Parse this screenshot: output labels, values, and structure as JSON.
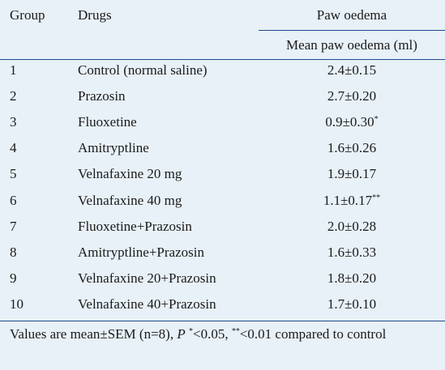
{
  "header": {
    "group": "Group",
    "drugs": "Drugs",
    "paw_oedema": "Paw oedema",
    "mean_paw_oedema": "Mean paw oedema (ml)"
  },
  "rows": [
    {
      "group": "1",
      "drug": "Control (normal saline)",
      "value": "2.4±0.15",
      "sig": ""
    },
    {
      "group": "2",
      "drug": "Prazosin",
      "value": "2.7±0.20",
      "sig": ""
    },
    {
      "group": "3",
      "drug": "Fluoxetine",
      "value": "0.9±0.30",
      "sig": "*"
    },
    {
      "group": "4",
      "drug": "Amitryptline",
      "value": "1.6±0.26",
      "sig": ""
    },
    {
      "group": "5",
      "drug": "Velnafaxine 20 mg",
      "value": "1.9±0.17",
      "sig": ""
    },
    {
      "group": "6",
      "drug": "Velnafaxine 40 mg",
      "value": "1.1±0.17",
      "sig": "**"
    },
    {
      "group": "7",
      "drug": "Fluoxetine+Prazosin",
      "value": "2.0±0.28",
      "sig": ""
    },
    {
      "group": "8",
      "drug": "Amitryptline+Prazosin",
      "value": "1.6±0.33",
      "sig": ""
    },
    {
      "group": "9",
      "drug": "Velnafaxine 20+Prazosin",
      "value": "1.8±0.20",
      "sig": ""
    },
    {
      "group": "10",
      "drug": "Velnafaxine 40+Prazosin",
      "value": "1.7±0.10",
      "sig": ""
    }
  ],
  "footnote": {
    "part1": "Values are mean±SEM (n=8), ",
    "p_label": "P",
    "sig1": "*",
    "part2": "<0.05, ",
    "sig2": "**",
    "part3": "<0.01 compared to control"
  },
  "colors": {
    "background": "#e8f1f8",
    "rule": "#1e4a8a",
    "text": "#1a1a1a"
  }
}
